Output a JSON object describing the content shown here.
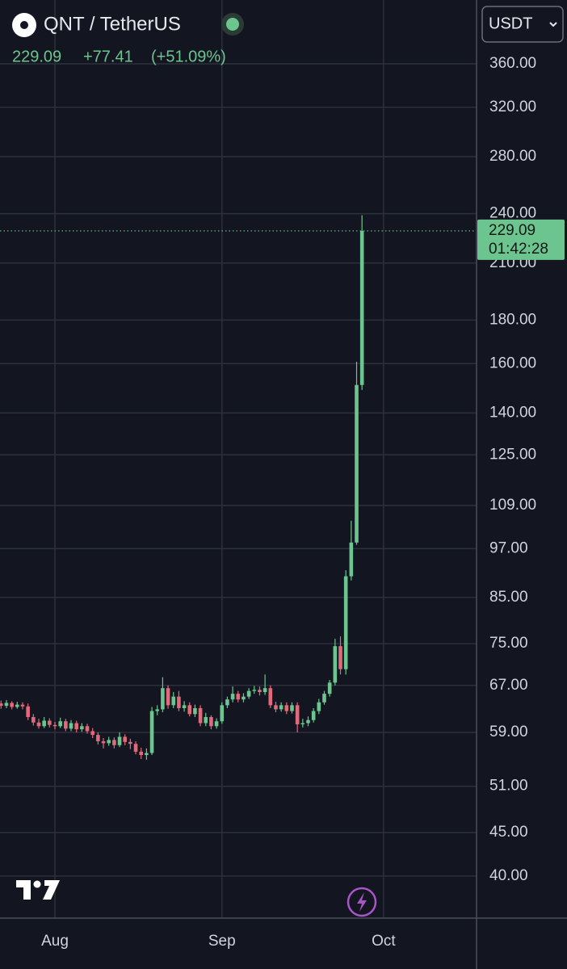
{
  "chart_data": {
    "type": "candlestick",
    "title": "QNT / TetherUS",
    "change": "+77.41",
    "change_pct": "(+51.09%)",
    "currency": "USDT",
    "countdown": "01:42:28",
    "log_scale": true,
    "grid": true,
    "up_color": "#6cc58f",
    "down_color": "#e0697a",
    "categories": [
      null,
      null,
      null,
      null,
      null,
      null,
      null,
      null,
      null,
      null,
      "Aug",
      null,
      null,
      null,
      null,
      null,
      null,
      null,
      null,
      null,
      null,
      null,
      null,
      null,
      null,
      null,
      null,
      null,
      null,
      null,
      null,
      null,
      null,
      null,
      null,
      null,
      null,
      null,
      null,
      null,
      null,
      "Sep",
      null,
      null,
      null,
      null,
      null,
      null,
      null,
      null,
      null,
      null,
      null,
      null,
      null,
      null,
      null,
      null,
      null,
      null,
      null,
      null,
      null,
      null,
      null,
      null,
      null,
      null,
      null,
      null,
      null,
      "Oct"
    ],
    "open": [
      63.8,
      63.4,
      63.9,
      63.2,
      63.6,
      63.3,
      61.5,
      60.6,
      60.0,
      60.9,
      60.2,
      60.0,
      60.8,
      59.6,
      60.5,
      59.5,
      60.0,
      59.2,
      58.6,
      57.6,
      57.3,
      57.8,
      57.0,
      58.3,
      57.5,
      57.2,
      56.0,
      55.5,
      55.8,
      62.5,
      62.8,
      66.5,
      63.5,
      65.0,
      63.0,
      63.5,
      62.0,
      63.0,
      60.5,
      61.5,
      60.0,
      60.8,
      63.5,
      64.5,
      65.5,
      64.5,
      65.0,
      66.0,
      66.2,
      65.8,
      66.5,
      63.5,
      62.8,
      63.5,
      62.5,
      63.5,
      60.3,
      60.5,
      61.0,
      62.5,
      64.0,
      65.5,
      67.5,
      74.5,
      70.0,
      90.0,
      98.6,
      151.0,
      null,
      null,
      null,
      null
    ],
    "high": [
      64.3,
      64.4,
      64.2,
      64.1,
      64.0,
      63.8,
      62.0,
      61.2,
      61.5,
      61.3,
      60.7,
      61.4,
      61.2,
      61.0,
      60.9,
      60.5,
      60.4,
      59.7,
      59.0,
      58.1,
      58.3,
      58.2,
      59.0,
      58.7,
      58.0,
      57.6,
      56.6,
      56.5,
      63.2,
      63.5,
      68.5,
      67.0,
      65.8,
      66.0,
      64.2,
      64.0,
      63.6,
      63.5,
      62.2,
      61.8,
      61.3,
      64.0,
      65.0,
      66.8,
      66.0,
      65.6,
      66.5,
      66.9,
      66.8,
      69.0,
      67.0,
      64.1,
      64.0,
      64.0,
      64.0,
      64.0,
      61.2,
      61.6,
      63.0,
      64.6,
      66.0,
      68.0,
      76.0,
      76.5,
      91.5,
      104.6,
      160.8,
      239.0,
      null,
      null,
      null,
      null
    ],
    "low": [
      62.9,
      63.0,
      62.8,
      62.9,
      62.8,
      61.0,
      60.1,
      59.6,
      59.7,
      59.8,
      59.5,
      59.7,
      59.2,
      59.2,
      59.0,
      59.1,
      58.8,
      58.1,
      57.1,
      56.5,
      56.9,
      56.5,
      56.7,
      57.0,
      56.4,
      55.6,
      54.9,
      54.8,
      55.5,
      61.8,
      62.3,
      62.9,
      63.0,
      62.5,
      62.4,
      61.6,
      61.5,
      60.0,
      60.0,
      59.5,
      59.6,
      60.4,
      63.0,
      64.0,
      64.0,
      64.0,
      64.6,
      65.5,
      65.2,
      65.3,
      63.0,
      62.3,
      62.4,
      62.0,
      62.1,
      59.0,
      59.8,
      60.0,
      60.6,
      62.0,
      63.6,
      65.0,
      67.0,
      69.0,
      69.0,
      89.0,
      98.0,
      149.0,
      null,
      null,
      null,
      null
    ],
    "close": [
      63.4,
      63.9,
      63.2,
      63.6,
      63.3,
      61.5,
      60.6,
      60.0,
      60.9,
      60.2,
      60.0,
      60.8,
      59.6,
      60.5,
      59.5,
      60.0,
      59.2,
      58.6,
      57.6,
      57.3,
      57.8,
      57.0,
      58.3,
      57.5,
      57.2,
      56.0,
      55.5,
      55.8,
      62.5,
      62.8,
      66.5,
      63.5,
      65.0,
      63.0,
      63.5,
      62.0,
      63.0,
      60.5,
      61.5,
      60.0,
      60.8,
      63.5,
      64.5,
      65.5,
      64.5,
      65.0,
      66.0,
      66.2,
      65.8,
      66.5,
      63.5,
      62.8,
      63.5,
      62.5,
      63.5,
      60.3,
      60.5,
      61.0,
      62.5,
      64.0,
      65.5,
      67.5,
      74.5,
      70.0,
      90.0,
      98.6,
      151.0,
      229.09,
      null,
      null,
      null,
      null
    ],
    "ylim": [
      35.7,
      427.8
    ],
    "yticks": [
      {
        "value": 360,
        "label": "360.00"
      },
      {
        "value": 320,
        "label": "320.00"
      },
      {
        "value": 280,
        "label": "280.00"
      },
      {
        "value": 240,
        "label": "240.00"
      },
      {
        "value": 210,
        "label": "210.00"
      },
      {
        "value": 180,
        "label": "180.00"
      },
      {
        "value": 160,
        "label": "160.00"
      },
      {
        "value": 140,
        "label": "140.00"
      },
      {
        "value": 125,
        "label": "125.00"
      },
      {
        "value": 109,
        "label": "109.00"
      },
      {
        "value": 97,
        "label": "97.00"
      },
      {
        "value": 85,
        "label": "85.00"
      },
      {
        "value": 75,
        "label": "75.00"
      },
      {
        "value": 67,
        "label": "67.00"
      },
      {
        "value": 59,
        "label": "59.00"
      },
      {
        "value": 51,
        "label": "51.00"
      },
      {
        "value": 45,
        "label": "45.00"
      },
      {
        "value": 40,
        "label": "40.00"
      }
    ]
  }
}
